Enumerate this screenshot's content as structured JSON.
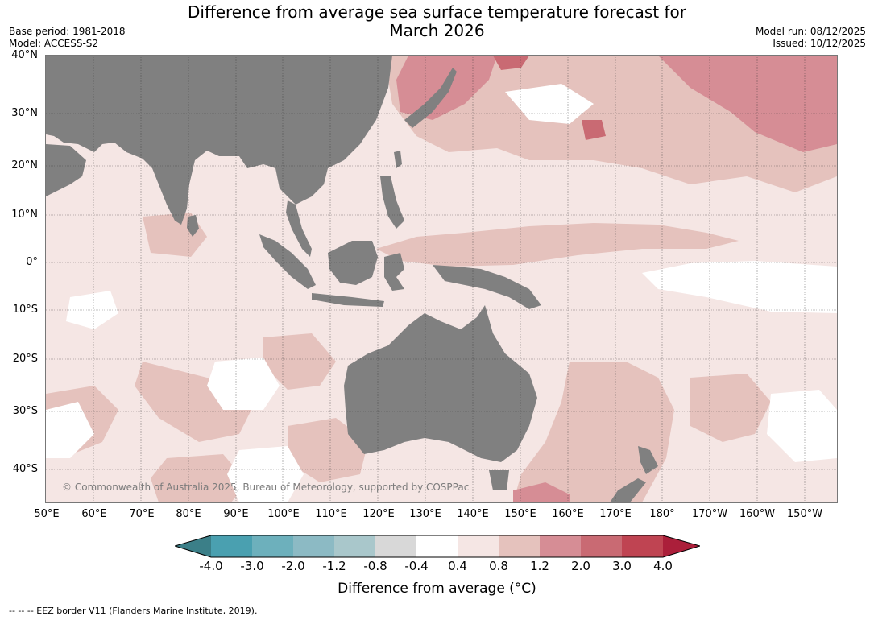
{
  "title_line1": "Difference from average sea surface temperature forecast for",
  "title_line2": "March 2026",
  "base_period": "Base period: 1981-2018",
  "model": "Model: ACCESS-S2",
  "model_run": "Model run: 08/12/2025",
  "issued": "Issued: 10/12/2025",
  "lat_labels": [
    "40°N",
    "30°N",
    "20°N",
    "10°N",
    "0°",
    "10°S",
    "20°S",
    "30°S",
    "40°S"
  ],
  "lon_labels": [
    "50°E",
    "60°E",
    "70°E",
    "80°E",
    "90°E",
    "100°E",
    "110°E",
    "120°E",
    "130°E",
    "140°E",
    "150°E",
    "160°E",
    "170°E",
    "180°",
    "170°W",
    "160°W",
    "150°W"
  ],
  "copyright": "© Commonwealth of Australia 2025, Bureau of Meteorology, supported by COSPPac",
  "legend": {
    "title": "Difference from average (°C)",
    "ticks": [
      "-4.0",
      "-3.0",
      "-2.0",
      "-1.2",
      "-0.8",
      "-0.4",
      "0.4",
      "0.8",
      "1.2",
      "2.0",
      "3.0",
      "4.0"
    ],
    "colors": {
      "below_min": "#3b7f88",
      "bins": [
        "#4aa0b0",
        "#6db0bc",
        "#8cbac4",
        "#a9c7cb",
        "#d8d8d8",
        "#ffffff",
        "#f5e6e4",
        "#e5c2bd",
        "#d68d95",
        "#c96a73",
        "#bf4452"
      ],
      "above_max": "#ab1f3a"
    }
  },
  "colors": {
    "land": "#808080",
    "warm_light": "#f5e6e4",
    "warm_mid": "#e5c2bd",
    "warm_strong": "#d68d95",
    "warm_deep": "#c96a73",
    "near_zero": "#ffffff"
  },
  "footnote": "-- -- -- EEZ border V11 (Flanders Marine Institute, 2019)."
}
